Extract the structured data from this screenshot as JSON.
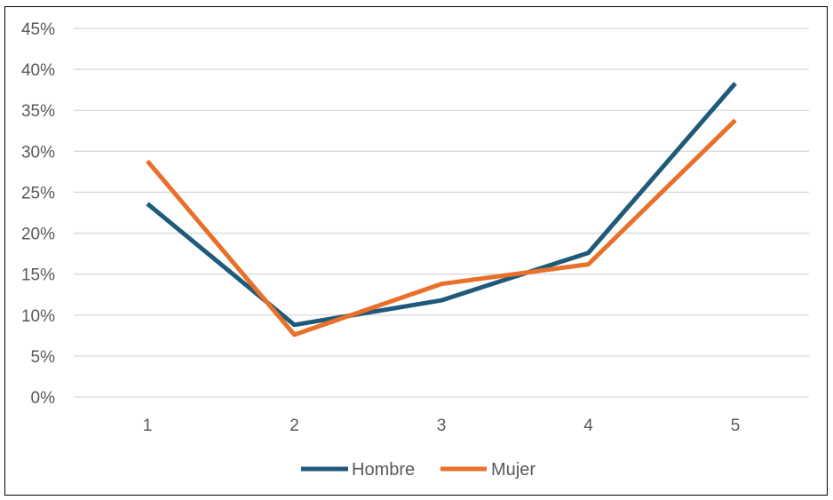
{
  "chart_data": {
    "type": "line",
    "title": "",
    "xlabel": "",
    "ylabel": "",
    "categories": [
      "1",
      "2",
      "3",
      "4",
      "5"
    ],
    "ylim": [
      0,
      0.45
    ],
    "yticks": [
      0,
      0.05,
      0.1,
      0.15,
      0.2,
      0.25,
      0.3,
      0.35,
      0.4,
      0.45
    ],
    "ytick_labels": [
      "0%",
      "5%",
      "10%",
      "15%",
      "20%",
      "25%",
      "30%",
      "35%",
      "40%",
      "45%"
    ],
    "grid": true,
    "legend_position": "bottom",
    "series": [
      {
        "name": "Hombre",
        "color": "#1F5A7A",
        "values": [
          0.236,
          0.088,
          0.118,
          0.176,
          0.383
        ]
      },
      {
        "name": "Mujer",
        "color": "#E8702A",
        "values": [
          0.288,
          0.076,
          0.138,
          0.162,
          0.338
        ]
      }
    ]
  }
}
